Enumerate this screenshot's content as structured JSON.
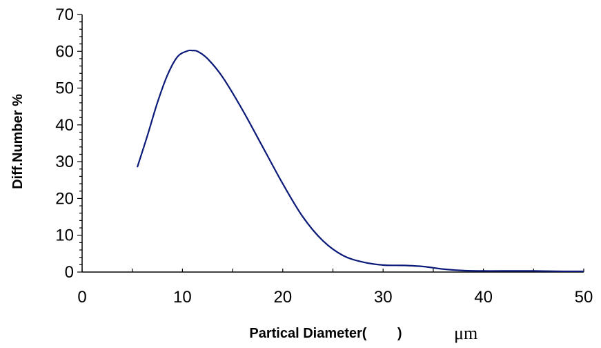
{
  "chart_data": {
    "type": "line",
    "title": "",
    "xlabel": "Partical Diameter(        )",
    "xunit": "μm",
    "ylabel": "Diff.Number %",
    "xlim": [
      0,
      50
    ],
    "ylim": [
      0,
      70
    ],
    "x_ticks": [
      "0",
      "10",
      "20",
      "30",
      "40",
      "50"
    ],
    "y_ticks": [
      "0",
      "10",
      "20",
      "30",
      "40",
      "50",
      "60",
      "70"
    ],
    "grid": false,
    "legend": "none",
    "series": [
      {
        "color": "#0b1a78",
        "x": [
          5.5,
          6.5,
          7.5,
          8.5,
          9.5,
          10.5,
          11.0,
          11.5,
          12.5,
          14,
          16,
          18,
          20,
          22,
          24,
          26,
          28,
          30,
          32,
          34,
          36,
          38,
          40,
          42,
          45,
          48,
          50
        ],
        "y": [
          28.5,
          37,
          46,
          53.5,
          58.5,
          60.1,
          60.2,
          60.0,
          58,
          53,
          44,
          34,
          24,
          15,
          8.5,
          4.5,
          2.7,
          1.9,
          1.8,
          1.5,
          0.8,
          0.4,
          0.3,
          0.3,
          0.3,
          0.2,
          0.2
        ]
      }
    ]
  }
}
